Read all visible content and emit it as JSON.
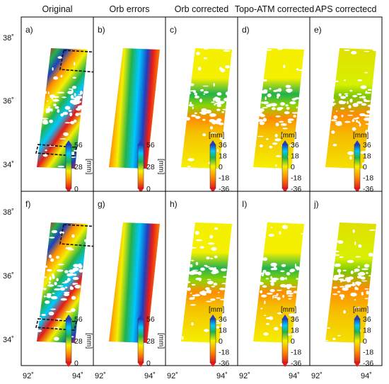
{
  "columns": [
    {
      "title": "Original"
    },
    {
      "title": "Orb errors"
    },
    {
      "title": "Orb corrected"
    },
    {
      "title": "Topo-ATM corrected"
    },
    {
      "title": "APS correctecd"
    }
  ],
  "panels": [
    {
      "label": "a)",
      "row": 0,
      "col": 0,
      "style": "wrapped",
      "boxes": true
    },
    {
      "label": "b)",
      "row": 0,
      "col": 1,
      "style": "orbit"
    },
    {
      "label": "c)",
      "row": 0,
      "col": 2,
      "style": "corrected"
    },
    {
      "label": "d)",
      "row": 0,
      "col": 3,
      "style": "corrected"
    },
    {
      "label": "e)",
      "row": 0,
      "col": 4,
      "style": "aps"
    },
    {
      "label": "f)",
      "row": 1,
      "col": 0,
      "style": "wrapped",
      "boxes": true
    },
    {
      "label": "g)",
      "row": 1,
      "col": 1,
      "style": "orbit"
    },
    {
      "label": "h)",
      "row": 1,
      "col": 2,
      "style": "corrected"
    },
    {
      "label": "I)",
      "row": 1,
      "col": 3,
      "style": "corrected"
    },
    {
      "label": "j)",
      "row": 1,
      "col": 4,
      "style": "aps"
    }
  ],
  "lat_ticks": [
    "38˚",
    "36˚",
    "34˚"
  ],
  "lon_ticks": [
    "92˚",
    "94˚"
  ],
  "colorbar_wrapped": {
    "unit": "[mm]",
    "ticks": [
      "56",
      "28",
      "0"
    ]
  },
  "colorbar_corrected": {
    "unit": "[mm]",
    "ticks": [
      "36",
      "18",
      "0",
      "-18",
      "-36"
    ]
  },
  "colors": {
    "red": "#e31a1c",
    "orange": "#ff8c00",
    "yellow": "#f5f000",
    "green": "#22b14c",
    "cyan": "#00c8ff",
    "blue": "#1f3fbf"
  }
}
